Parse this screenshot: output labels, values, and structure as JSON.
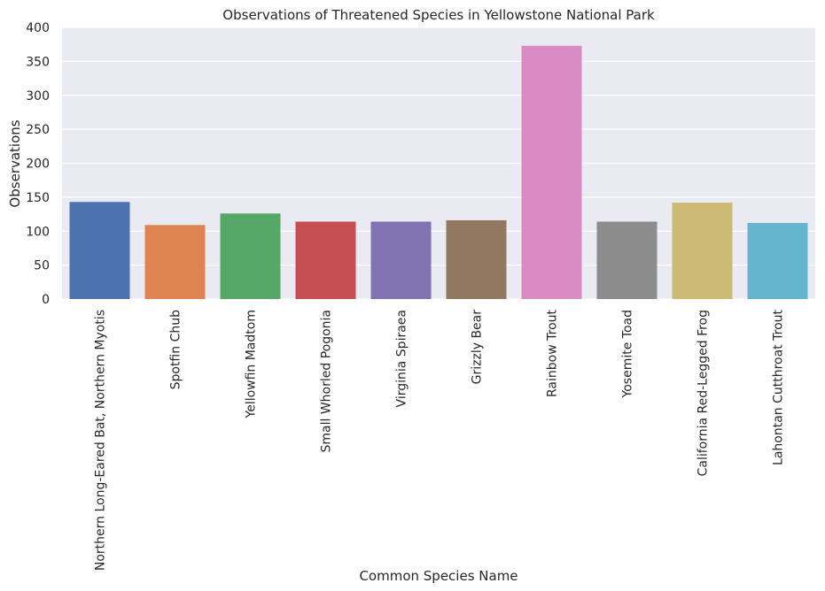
{
  "chart_data": {
    "type": "bar",
    "title": "Observations of Threatened Species in Yellowstone National Park",
    "xlabel": "Common Species Name",
    "ylabel": "Observations",
    "ylim": [
      0,
      400
    ],
    "yticks": [
      0,
      50,
      100,
      150,
      200,
      250,
      300,
      350,
      400
    ],
    "grid": true,
    "categories": [
      "Northern Long-Eared Bat, Northern Myotis",
      "Spotfin Chub",
      "Yellowfin Madtom",
      "Small Whorled Pogonia",
      "Virginia Spiraea",
      "Grizzly Bear",
      "Rainbow Trout",
      "Yosemite Toad",
      "California Red-Legged Frog",
      "Lahontan Cutthroat Trout"
    ],
    "values": [
      143,
      109,
      126,
      114,
      114,
      116,
      373,
      114,
      142,
      112
    ],
    "colors": [
      "#4c72b0",
      "#dd8452",
      "#55a868",
      "#c44e52",
      "#8172b3",
      "#937860",
      "#da8bc3",
      "#8c8c8c",
      "#ccb974",
      "#64b5cd"
    ],
    "background": "#eaeaf2"
  }
}
